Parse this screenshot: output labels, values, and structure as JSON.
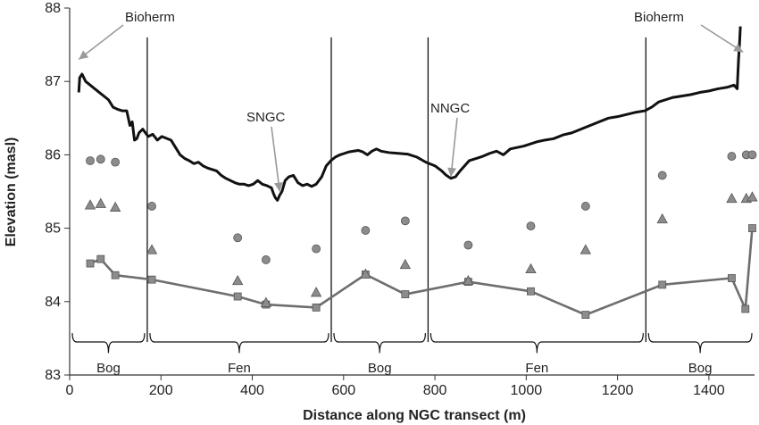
{
  "chart_data": {
    "type": "line",
    "title": "",
    "xlabel": "Distance along NGC transect (m)",
    "ylabel": "Elevation (masl)",
    "xlim": [
      0,
      1500
    ],
    "ylim": [
      83,
      88
    ],
    "x_ticks": [
      0,
      200,
      400,
      600,
      800,
      1000,
      1200,
      1400
    ],
    "y_ticks": [
      83,
      84,
      85,
      86,
      87,
      88
    ],
    "grid": false,
    "legend": "none",
    "surface_profile": [
      [
        20,
        86.85
      ],
      [
        22,
        87.05
      ],
      [
        27,
        87.1
      ],
      [
        35,
        87.0
      ],
      [
        45,
        86.95
      ],
      [
        55,
        86.9
      ],
      [
        65,
        86.85
      ],
      [
        75,
        86.8
      ],
      [
        85,
        86.75
      ],
      [
        95,
        86.65
      ],
      [
        105,
        86.62
      ],
      [
        115,
        86.6
      ],
      [
        125,
        86.6
      ],
      [
        132,
        86.4
      ],
      [
        137,
        86.45
      ],
      [
        142,
        86.2
      ],
      [
        147,
        86.22
      ],
      [
        152,
        86.3
      ],
      [
        160,
        86.35
      ],
      [
        172,
        86.25
      ],
      [
        182,
        86.28
      ],
      [
        192,
        86.2
      ],
      [
        202,
        86.25
      ],
      [
        210,
        86.23
      ],
      [
        222,
        86.2
      ],
      [
        232,
        86.1
      ],
      [
        242,
        86.0
      ],
      [
        252,
        85.95
      ],
      [
        262,
        85.92
      ],
      [
        272,
        85.88
      ],
      [
        282,
        85.9
      ],
      [
        292,
        85.85
      ],
      [
        302,
        85.82
      ],
      [
        312,
        85.8
      ],
      [
        322,
        85.78
      ],
      [
        332,
        85.72
      ],
      [
        342,
        85.68
      ],
      [
        352,
        85.65
      ],
      [
        362,
        85.62
      ],
      [
        372,
        85.6
      ],
      [
        382,
        85.6
      ],
      [
        392,
        85.58
      ],
      [
        402,
        85.6
      ],
      [
        412,
        85.65
      ],
      [
        422,
        85.6
      ],
      [
        432,
        85.58
      ],
      [
        442,
        85.55
      ],
      [
        446,
        85.48
      ],
      [
        450,
        85.42
      ],
      [
        455,
        85.38
      ],
      [
        460,
        85.45
      ],
      [
        465,
        85.5
      ],
      [
        472,
        85.65
      ],
      [
        480,
        85.7
      ],
      [
        490,
        85.72
      ],
      [
        500,
        85.62
      ],
      [
        510,
        85.58
      ],
      [
        520,
        85.6
      ],
      [
        530,
        85.57
      ],
      [
        540,
        85.6
      ],
      [
        552,
        85.7
      ],
      [
        562,
        85.85
      ],
      [
        572,
        85.92
      ],
      [
        582,
        85.97
      ],
      [
        592,
        86.0
      ],
      [
        602,
        86.02
      ],
      [
        612,
        86.04
      ],
      [
        622,
        86.05
      ],
      [
        632,
        86.06
      ],
      [
        642,
        86.04
      ],
      [
        652,
        86.0
      ],
      [
        662,
        86.05
      ],
      [
        672,
        86.08
      ],
      [
        682,
        86.05
      ],
      [
        700,
        86.03
      ],
      [
        720,
        86.02
      ],
      [
        740,
        86.01
      ],
      [
        760,
        85.97
      ],
      [
        780,
        85.9
      ],
      [
        800,
        85.85
      ],
      [
        815,
        85.78
      ],
      [
        825,
        85.72
      ],
      [
        835,
        85.68
      ],
      [
        845,
        85.7
      ],
      [
        855,
        85.78
      ],
      [
        865,
        85.85
      ],
      [
        875,
        85.92
      ],
      [
        890,
        85.95
      ],
      [
        905,
        85.98
      ],
      [
        920,
        86.02
      ],
      [
        935,
        86.05
      ],
      [
        950,
        86.0
      ],
      [
        965,
        86.08
      ],
      [
        980,
        86.1
      ],
      [
        995,
        86.12
      ],
      [
        1010,
        86.15
      ],
      [
        1025,
        86.18
      ],
      [
        1040,
        86.2
      ],
      [
        1060,
        86.22
      ],
      [
        1080,
        86.27
      ],
      [
        1100,
        86.3
      ],
      [
        1120,
        86.35
      ],
      [
        1140,
        86.4
      ],
      [
        1160,
        86.45
      ],
      [
        1180,
        86.5
      ],
      [
        1200,
        86.52
      ],
      [
        1220,
        86.55
      ],
      [
        1240,
        86.58
      ],
      [
        1260,
        86.6
      ],
      [
        1275,
        86.65
      ],
      [
        1290,
        86.72
      ],
      [
        1305,
        86.75
      ],
      [
        1320,
        86.78
      ],
      [
        1340,
        86.8
      ],
      [
        1360,
        86.82
      ],
      [
        1380,
        86.85
      ],
      [
        1400,
        86.87
      ],
      [
        1420,
        86.9
      ],
      [
        1440,
        86.92
      ],
      [
        1455,
        86.95
      ],
      [
        1462,
        86.9
      ],
      [
        1465,
        87.3
      ],
      [
        1467,
        87.5
      ],
      [
        1469,
        87.75
      ]
    ],
    "series": [
      {
        "marker": "square",
        "points": [
          [
            45,
            84.52
          ],
          [
            68,
            84.58
          ],
          [
            100,
            84.36
          ],
          [
            180,
            84.3
          ],
          [
            368,
            84.07
          ],
          [
            430,
            83.96
          ],
          [
            540,
            83.92
          ],
          [
            648,
            84.37
          ],
          [
            735,
            84.1
          ],
          [
            873,
            84.27
          ],
          [
            1010,
            84.14
          ],
          [
            1130,
            83.82
          ],
          [
            1298,
            84.23
          ],
          [
            1450,
            84.32
          ],
          [
            1480,
            83.9
          ],
          [
            1495,
            85.0
          ]
        ],
        "connected": true
      },
      {
        "marker": "circle",
        "points": [
          [
            45,
            85.92
          ],
          [
            68,
            85.94
          ],
          [
            100,
            85.9
          ],
          [
            180,
            85.3
          ],
          [
            368,
            84.87
          ],
          [
            430,
            84.57
          ],
          [
            540,
            84.72
          ],
          [
            648,
            84.97
          ],
          [
            735,
            85.1
          ],
          [
            873,
            84.77
          ],
          [
            1010,
            85.03
          ],
          [
            1130,
            85.3
          ],
          [
            1298,
            85.72
          ],
          [
            1450,
            85.98
          ],
          [
            1482,
            86.0
          ],
          [
            1495,
            86.0
          ]
        ],
        "connected": false
      },
      {
        "marker": "triangle",
        "points": [
          [
            45,
            85.31
          ],
          [
            68,
            85.33
          ],
          [
            100,
            85.28
          ],
          [
            180,
            84.7
          ],
          [
            368,
            84.28
          ],
          [
            430,
            83.98
          ],
          [
            540,
            84.12
          ],
          [
            648,
            84.37
          ],
          [
            735,
            84.5
          ],
          [
            873,
            84.28
          ],
          [
            1010,
            84.44
          ],
          [
            1130,
            84.7
          ],
          [
            1298,
            85.12
          ],
          [
            1450,
            85.4
          ],
          [
            1482,
            85.4
          ],
          [
            1495,
            85.42
          ]
        ],
        "connected": false
      }
    ],
    "zone_boundaries": [
      170,
      573,
      785,
      1262
    ],
    "zones": [
      {
        "label": "Bog",
        "from": 0,
        "to": 170
      },
      {
        "label": "Fen",
        "from": 170,
        "to": 573
      },
      {
        "label": "Bog",
        "from": 573,
        "to": 785
      },
      {
        "label": "Fen",
        "from": 785,
        "to": 1262
      },
      {
        "label": "Bog",
        "from": 1262,
        "to": 1500
      }
    ],
    "annotations": [
      {
        "text": "Bioherm",
        "target": [
          20,
          87.3
        ],
        "anchor": "left"
      },
      {
        "text": "SNGC",
        "target": [
          460,
          85.5
        ],
        "anchor": "left"
      },
      {
        "text": "NNGC",
        "target": [
          835,
          85.7
        ],
        "anchor": "right"
      },
      {
        "text": "Bioherm",
        "target": [
          1475,
          87.4
        ],
        "anchor": "right"
      }
    ]
  }
}
